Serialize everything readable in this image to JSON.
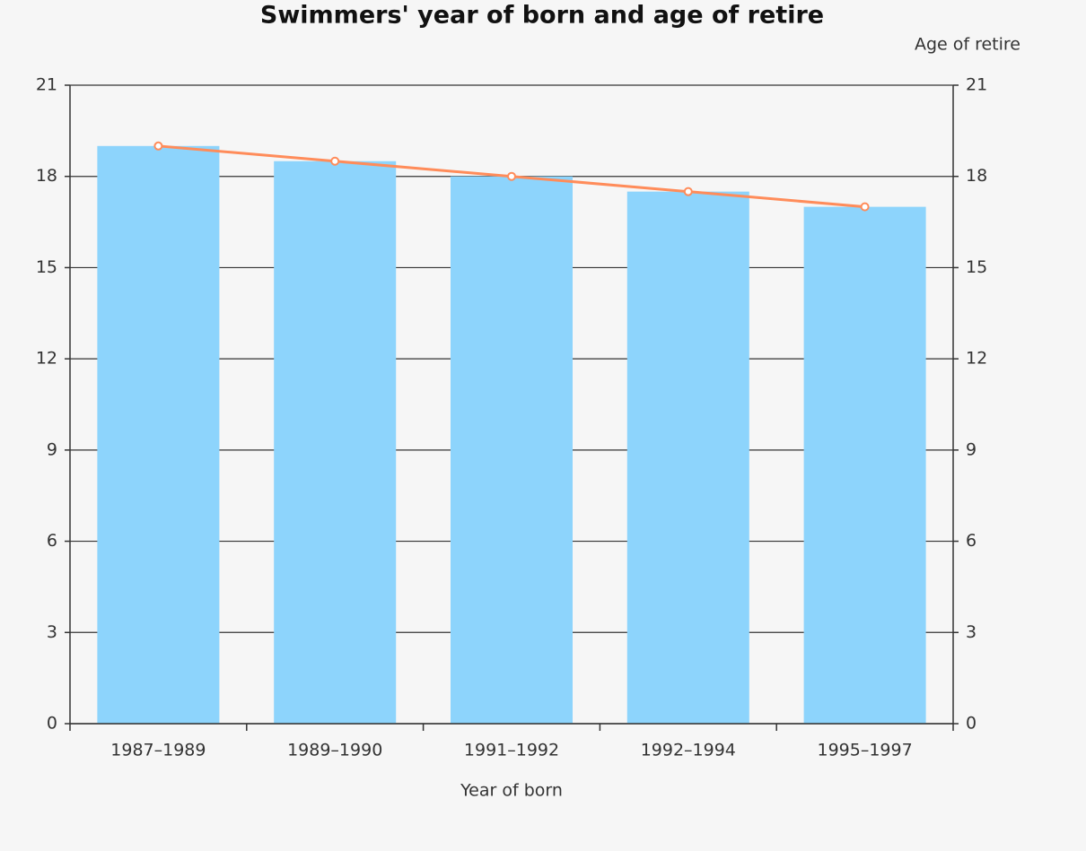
{
  "chart_data": {
    "type": "bar",
    "title": "Swimmers' year of born and age of retire",
    "x_label": "Year of born",
    "y2_label": "Age of retire",
    "categories": [
      "1987–1989",
      "1989–1990",
      "1991–1992",
      "1992–1994",
      "1995–1997"
    ],
    "series": [
      {
        "type": "bar",
        "color": "#8dd4fc",
        "values": [
          19,
          18.5,
          18,
          17.5,
          17
        ]
      },
      {
        "type": "line",
        "axis": "y2",
        "color": "#ff8c5a",
        "values": [
          19,
          18.5,
          18,
          17.5,
          17
        ]
      }
    ],
    "ylim": [
      0,
      21
    ],
    "yticks": [
      0,
      3,
      6,
      9,
      12,
      15,
      18,
      21
    ],
    "y2lim": [
      0,
      21
    ],
    "y2ticks": [
      0,
      3,
      6,
      9,
      12,
      15,
      18,
      21
    ],
    "grid": true
  }
}
